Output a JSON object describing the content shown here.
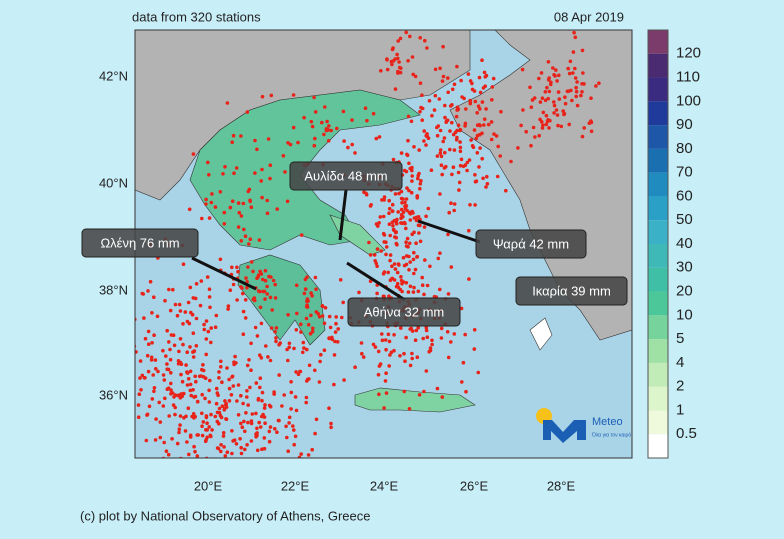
{
  "header": {
    "subtitle": "data from 320 stations",
    "date": "08 Apr 2019"
  },
  "map": {
    "lat_labels": [
      "42°N",
      "40°N",
      "38°N",
      "36°N"
    ],
    "lon_labels": [
      "20°E",
      "22°E",
      "24°E",
      "26°E",
      "28°E"
    ],
    "annotations": [
      "Αυλίδα 48 mm",
      "Ωλένη 76 mm",
      "Ψαρά 42 mm",
      "Ικαρία 39 mm",
      "Αθήνα 32 mm"
    ]
  },
  "colorbar": {
    "labels": [
      "120",
      "110",
      "100",
      "90",
      "80",
      "70",
      "60",
      "50",
      "40",
      "30",
      "20",
      "10",
      "5",
      "4",
      "2",
      "1",
      "0.5"
    ],
    "colors": [
      "#7b3b6b",
      "#4a2a70",
      "#3a2a80",
      "#1f3a9a",
      "#1e56a8",
      "#1a6fb0",
      "#1f8bbf",
      "#2aa0c6",
      "#3bb1c8",
      "#3fb8b8",
      "#3fbfa5",
      "#4cc79a",
      "#76d39b",
      "#9fe0a5",
      "#c2ecb7",
      "#ddf5cb",
      "#eefadb",
      "#ffffff"
    ]
  },
  "logo": {
    "name": "Meteo",
    "tagline": "Όλα για τον καιρό"
  },
  "footer": "(c) plot by National Observatory of Athens, Greece"
}
